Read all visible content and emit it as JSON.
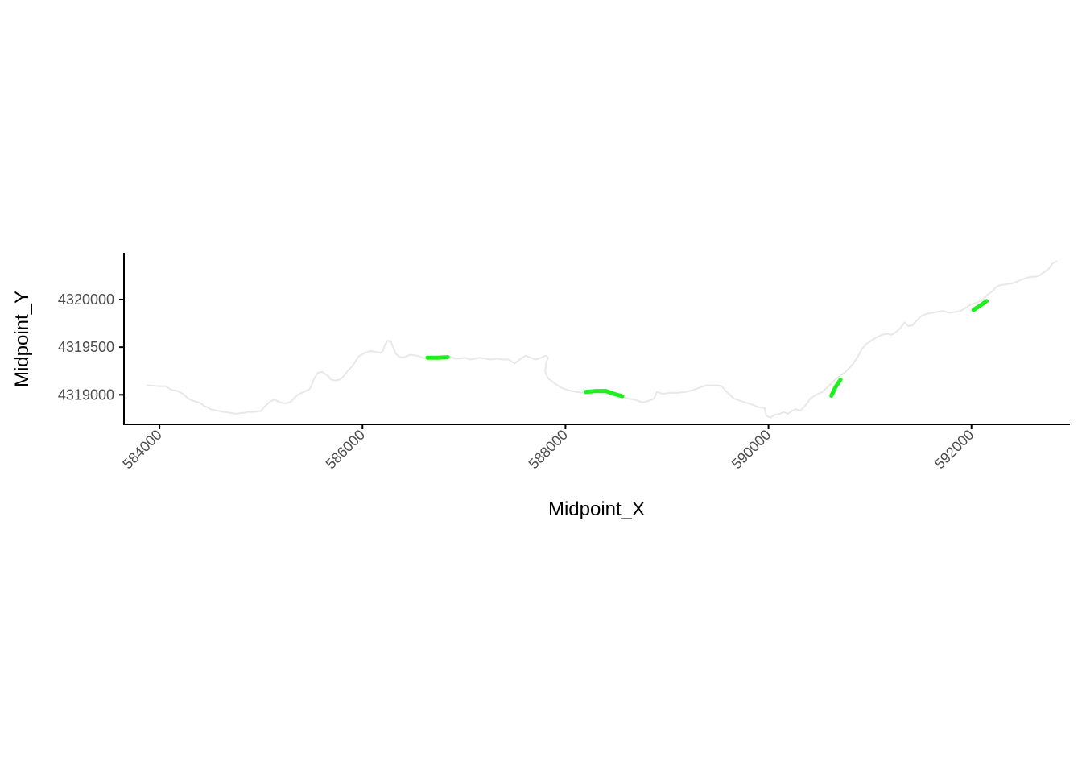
{
  "chart_data": {
    "type": "line",
    "title": "",
    "xlabel": "Midpoint_X",
    "ylabel": "Midpoint_Y",
    "xlim": [
      583650,
      592970
    ],
    "ylim": [
      4318690,
      4320490
    ],
    "x_ticks": [
      584000,
      586000,
      588000,
      590000,
      592000
    ],
    "x_tick_labels": [
      "584000",
      "586000",
      "588000",
      "590000",
      "592000"
    ],
    "y_ticks": [
      4319000,
      4319500,
      4320000
    ],
    "y_tick_labels": [
      "4319000",
      "4319500",
      "4320000"
    ],
    "grid": false,
    "legend": "none",
    "colors": {
      "stream": "#e8e8e8",
      "highlight": "#1ef01e",
      "axis": "#000000",
      "tick_label": "#4d4d4d"
    },
    "series": [
      {
        "kind": "stream",
        "x": [
          583880,
          584010,
          584060,
          584120,
          584180,
          584230,
          584260,
          584300,
          584350,
          584390,
          584420,
          584440,
          584470,
          584500,
          584540,
          584580,
          584640,
          584700,
          584760,
          584810,
          584840,
          584870,
          584930,
          585000,
          585040,
          585090,
          585130,
          585190,
          585250,
          585300,
          585340,
          585380,
          585420,
          585480,
          585530,
          585560,
          585600,
          585660,
          585690,
          585730,
          585780,
          585820,
          585860,
          585900,
          585960,
          586020,
          586080,
          586130,
          586180,
          586200,
          586220,
          586250,
          586280,
          586300,
          586330,
          586360,
          586400,
          586470,
          586540,
          586620,
          586700,
          586780,
          586860,
          586920,
          586960,
          587010,
          587060,
          587110,
          587160,
          587210,
          587270,
          587320,
          587380,
          587440,
          587500,
          587560,
          587610,
          587660,
          587700,
          587740,
          587780,
          587810,
          587830,
          587810,
          587800,
          587830,
          587880,
          587950,
          588020,
          588100,
          588200,
          588300,
          588400,
          588480,
          588560,
          588620,
          588680,
          588760,
          588830,
          588870,
          588890,
          588900,
          588960,
          589030,
          589100,
          589180,
          589260,
          589330,
          589390,
          589440,
          589500,
          589540,
          589570,
          589610,
          589660,
          589740,
          589830,
          589900,
          589960,
          589980,
          590020,
          590060,
          590110,
          590150,
          590190,
          590230,
          590270,
          590310,
          590350,
          590380,
          590410,
          590470,
          590530,
          590600,
          590680,
          590760,
          590830,
          590880,
          590920,
          590960,
          591000,
          591060,
          591120,
          591170,
          591210,
          591260,
          591300,
          591340,
          591380,
          591420,
          591460,
          591510,
          591560,
          591610,
          591660,
          591720,
          591780,
          591840,
          591890,
          591940,
          592000,
          592060,
          592110,
          592170,
          592210,
          592240,
          592280,
          592340,
          592400,
          592450,
          592500,
          592550,
          592600,
          592640,
          592680,
          592720,
          592760,
          592800,
          592840
        ],
        "y": [
          4319100,
          4319090,
          4319090,
          4319050,
          4319040,
          4319010,
          4318980,
          4318950,
          4318930,
          4318920,
          4318900,
          4318880,
          4318870,
          4318850,
          4318840,
          4318830,
          4318820,
          4318810,
          4318800,
          4318810,
          4318810,
          4318820,
          4318820,
          4318830,
          4318880,
          4318930,
          4318950,
          4318920,
          4318910,
          4318930,
          4318980,
          4319010,
          4319030,
          4319060,
          4319180,
          4319230,
          4319240,
          4319200,
          4319160,
          4319150,
          4319160,
          4319200,
          4319260,
          4319300,
          4319400,
          4319440,
          4319460,
          4319450,
          4319440,
          4319460,
          4319520,
          4319570,
          4319560,
          4319500,
          4319430,
          4319400,
          4319390,
          4319420,
          4319410,
          4319380,
          4319390,
          4319390,
          4319400,
          4319380,
          4319380,
          4319390,
          4319370,
          4319380,
          4319390,
          4319380,
          4319370,
          4319380,
          4319370,
          4319370,
          4319330,
          4319380,
          4319410,
          4319390,
          4319370,
          4319380,
          4319400,
          4319410,
          4319390,
          4319340,
          4319240,
          4319170,
          4319130,
          4319080,
          4319050,
          4319030,
          4319020,
          4319030,
          4319010,
          4318990,
          4318980,
          4318960,
          4318950,
          4318920,
          4318940,
          4318960,
          4319000,
          4319030,
          4319010,
          4319020,
          4319020,
          4319030,
          4319050,
          4319080,
          4319100,
          4319100,
          4319100,
          4319090,
          4319050,
          4319010,
          4318960,
          4318930,
          4318900,
          4318870,
          4318860,
          4318780,
          4318760,
          4318790,
          4318800,
          4318820,
          4318800,
          4318830,
          4318850,
          4318830,
          4318870,
          4318910,
          4318960,
          4319000,
          4319030,
          4319100,
          4319180,
          4319240,
          4319320,
          4319400,
          4319480,
          4319530,
          4319560,
          4319600,
          4319630,
          4319640,
          4319630,
          4319660,
          4319700,
          4319760,
          4319720,
          4319730,
          4319780,
          4319830,
          4319850,
          4319860,
          4319870,
          4319880,
          4319860,
          4319870,
          4319880,
          4319910,
          4319950,
          4319970,
          4320000,
          4320060,
          4320090,
          4320130,
          4320150,
          4320160,
          4320170,
          4320190,
          4320210,
          4320230,
          4320240,
          4320240,
          4320260,
          4320290,
          4320320,
          4320380,
          4320400
        ]
      },
      {
        "kind": "highlight",
        "x": [
          586640,
          586740,
          586840
        ],
        "y": [
          4319390,
          4319390,
          4319395
        ]
      },
      {
        "kind": "highlight",
        "x": [
          588200,
          588300,
          588400,
          588480,
          588560
        ],
        "y": [
          4319030,
          4319040,
          4319040,
          4319010,
          4318985
        ]
      },
      {
        "kind": "highlight",
        "x": [
          590620,
          590660,
          590710
        ],
        "y": [
          4318990,
          4319080,
          4319160
        ]
      },
      {
        "kind": "highlight",
        "x": [
          592020,
          592090,
          592150
        ],
        "y": [
          4319890,
          4319940,
          4319985
        ]
      }
    ]
  }
}
